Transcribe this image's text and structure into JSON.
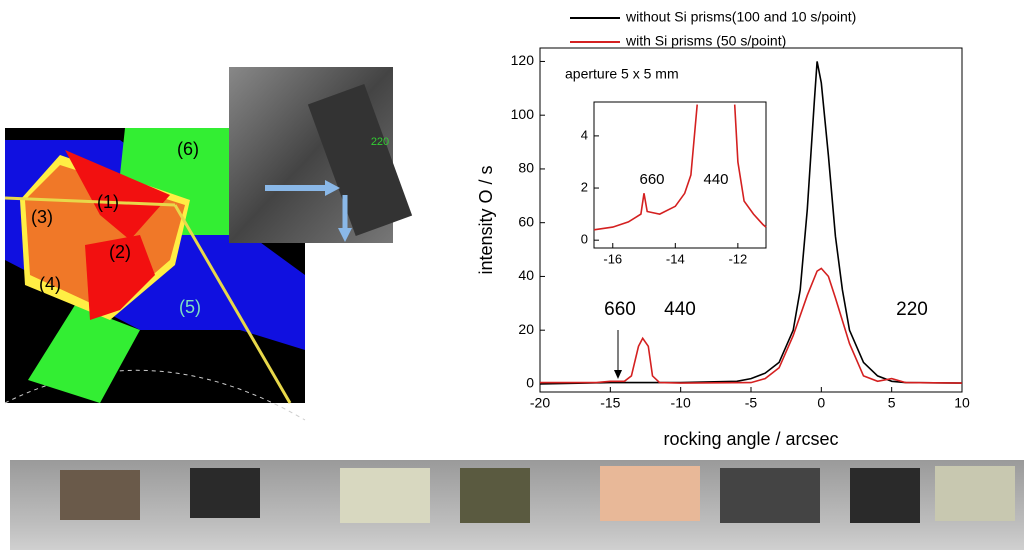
{
  "chart_data": [
    {
      "type": "line",
      "series": [
        {
          "name": "without Si prisms(100 and 10 s/point)",
          "color": "#000000",
          "x": [
            -20,
            -15,
            -13,
            -10,
            -6,
            -5,
            -4,
            -3,
            -2,
            -1.5,
            -1,
            -0.5,
            -0.3,
            0,
            0.5,
            1,
            1.5,
            2,
            3,
            4,
            5,
            6,
            10
          ],
          "values": [
            0,
            0.5,
            0.5,
            0.5,
            1,
            2,
            4,
            8,
            20,
            35,
            65,
            105,
            120,
            112,
            85,
            55,
            35,
            20,
            8,
            3,
            1,
            0.5,
            0.3
          ]
        },
        {
          "name": "with Si prisms (50 s/point)",
          "color": "#d42020",
          "x": [
            -20,
            -16,
            -15,
            -14,
            -13.5,
            -13,
            -12.7,
            -12.3,
            -12,
            -11.5,
            -10,
            -5,
            -4,
            -3,
            -2,
            -1,
            -0.3,
            0,
            0.5,
            1,
            2,
            3,
            4,
            5,
            6,
            10
          ],
          "values": [
            0.5,
            0.5,
            1,
            1,
            3,
            14,
            17,
            14,
            3,
            0.5,
            0.3,
            0.5,
            2,
            6,
            18,
            33,
            42,
            43,
            40,
            32,
            15,
            3,
            1,
            2,
            0.5,
            0.3
          ]
        }
      ],
      "xlabel": "rocking angle / arcsec",
      "ylabel": "intensity O / s",
      "xlim": [
        -20,
        10
      ],
      "xticks": [
        -20,
        -15,
        -10,
        -5,
        0,
        5,
        10
      ],
      "ylim": [
        -3,
        125
      ],
      "yticks": [
        0,
        20,
        40,
        60,
        80,
        100,
        120
      ],
      "annotations": [
        "660",
        "440",
        "220"
      ],
      "legend": "top"
    },
    {
      "type": "line",
      "series": [
        {
          "color": "#d42020",
          "x": [
            -16.6,
            -16,
            -15.5,
            -15.1,
            -15,
            -14.9,
            -14.5,
            -14,
            -13.7,
            -13.5,
            -13.3,
            null,
            -12.1,
            -12,
            -11.8,
            -11.5,
            -11.2,
            -11.1
          ],
          "values": [
            0.4,
            0.5,
            0.7,
            1.0,
            1.8,
            1.1,
            1.0,
            1.3,
            1.8,
            2.5,
            5.2,
            null,
            5.2,
            3,
            1.5,
            1.0,
            0.6,
            0.5
          ]
        }
      ],
      "title": "aperture 5 x 5 mm",
      "xlim": [
        -16.6,
        -11.1
      ],
      "xticks": [
        -16,
        -14,
        -12
      ],
      "ylim": [
        -0.3,
        5.3
      ],
      "yticks": [
        0,
        2,
        4
      ],
      "annotations": [
        "660",
        "440"
      ]
    }
  ],
  "diagram": {
    "labels": [
      "(1)",
      "(2)",
      "(3)",
      "(4)",
      "(5)",
      "(6)"
    ],
    "photo_label": "220"
  }
}
